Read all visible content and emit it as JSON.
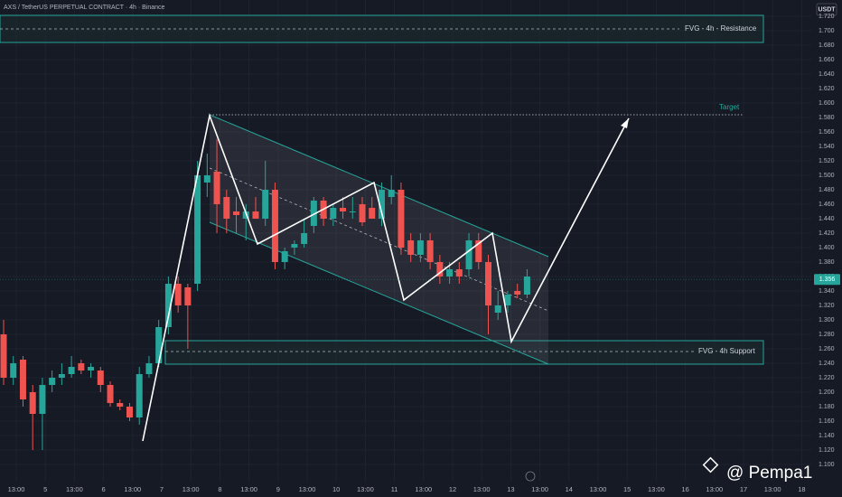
{
  "header": {
    "title": "AXS / TetherUS PERPETUAL CONTRACT · 4h · Binance",
    "currency": "USDT"
  },
  "chart_data": {
    "type": "candlestick",
    "up_color": "#26a69a",
    "down_color": "#ef5350",
    "open": [
      1.28,
      1.22,
      1.245,
      1.2,
      1.17,
      1.21,
      1.22,
      1.225,
      1.24,
      1.23,
      1.23,
      1.21,
      1.185,
      1.18,
      1.165,
      1.225,
      1.24,
      1.29,
      1.35,
      1.345,
      1.35,
      1.49,
      1.505,
      1.47,
      1.45,
      1.44,
      1.45,
      1.44,
      1.48,
      1.38,
      1.4,
      1.405,
      1.43,
      1.465,
      1.44,
      1.455,
      1.45,
      1.46,
      1.455,
      1.44,
      1.47,
      1.48,
      1.41,
      1.39,
      1.41,
      1.38,
      1.36,
      1.37,
      1.37,
      1.41,
      1.38,
      1.31,
      1.32,
      1.34,
      1.335
    ],
    "high": [
      1.3,
      1.25,
      1.25,
      1.21,
      1.22,
      1.23,
      1.24,
      1.25,
      1.245,
      1.24,
      1.235,
      1.215,
      1.19,
      1.185,
      1.235,
      1.25,
      1.3,
      1.36,
      1.36,
      1.35,
      1.52,
      1.53,
      1.55,
      1.48,
      1.47,
      1.46,
      1.47,
      1.52,
      1.49,
      1.4,
      1.41,
      1.44,
      1.47,
      1.47,
      1.46,
      1.47,
      1.47,
      1.47,
      1.47,
      1.49,
      1.5,
      1.49,
      1.42,
      1.42,
      1.42,
      1.39,
      1.38,
      1.38,
      1.42,
      1.42,
      1.39,
      1.34,
      1.34,
      1.35,
      1.37
    ],
    "low": [
      1.21,
      1.21,
      1.18,
      1.12,
      1.12,
      1.2,
      1.21,
      1.22,
      1.225,
      1.22,
      1.2,
      1.18,
      1.175,
      1.16,
      1.155,
      1.22,
      1.235,
      1.28,
      1.31,
      1.26,
      1.34,
      1.47,
      1.42,
      1.42,
      1.42,
      1.41,
      1.44,
      1.43,
      1.37,
      1.37,
      1.39,
      1.4,
      1.42,
      1.43,
      1.43,
      1.44,
      1.44,
      1.43,
      1.44,
      1.43,
      1.46,
      1.39,
      1.38,
      1.38,
      1.37,
      1.35,
      1.35,
      1.35,
      1.36,
      1.37,
      1.28,
      1.3,
      1.31,
      1.33,
      1.33
    ],
    "close": [
      1.22,
      1.24,
      1.19,
      1.17,
      1.21,
      1.22,
      1.225,
      1.235,
      1.23,
      1.235,
      1.21,
      1.185,
      1.18,
      1.165,
      1.225,
      1.24,
      1.29,
      1.35,
      1.32,
      1.32,
      1.5,
      1.5,
      1.46,
      1.44,
      1.445,
      1.45,
      1.44,
      1.48,
      1.38,
      1.395,
      1.405,
      1.42,
      1.465,
      1.44,
      1.455,
      1.45,
      1.45,
      1.435,
      1.44,
      1.48,
      1.48,
      1.4,
      1.39,
      1.41,
      1.38,
      1.36,
      1.37,
      1.36,
      1.41,
      1.38,
      1.32,
      1.32,
      1.335,
      1.335,
      1.36
    ],
    "ylim": [
      1.1,
      1.72
    ],
    "yticks": [
      {
        "value": 1.1,
        "label": "1.100"
      },
      {
        "value": 1.12,
        "label": "1.120"
      },
      {
        "value": 1.14,
        "label": "1.140"
      },
      {
        "value": 1.16,
        "label": "1.160"
      },
      {
        "value": 1.18,
        "label": "1.180"
      },
      {
        "value": 1.2,
        "label": "1.200"
      },
      {
        "value": 1.22,
        "label": "1.220"
      },
      {
        "value": 1.24,
        "label": "1.240"
      },
      {
        "value": 1.26,
        "label": "1.260"
      },
      {
        "value": 1.28,
        "label": "1.280"
      },
      {
        "value": 1.3,
        "label": "1.300"
      },
      {
        "value": 1.32,
        "label": "1.320"
      },
      {
        "value": 1.34,
        "label": "1.340"
      },
      {
        "value": 1.36,
        "label": "1.360"
      },
      {
        "value": 1.38,
        "label": "1.380"
      },
      {
        "value": 1.4,
        "label": "1.400"
      },
      {
        "value": 1.42,
        "label": "1.420"
      },
      {
        "value": 1.44,
        "label": "1.440"
      },
      {
        "value": 1.46,
        "label": "1.460"
      },
      {
        "value": 1.48,
        "label": "1.480"
      },
      {
        "value": 1.5,
        "label": "1.500"
      },
      {
        "value": 1.52,
        "label": "1.520"
      },
      {
        "value": 1.54,
        "label": "1.540"
      },
      {
        "value": 1.56,
        "label": "1.560"
      },
      {
        "value": 1.58,
        "label": "1.580"
      },
      {
        "value": 1.6,
        "label": "1.600"
      },
      {
        "value": 1.62,
        "label": "1.620"
      },
      {
        "value": 1.64,
        "label": "1.640"
      },
      {
        "value": 1.66,
        "label": "1.660"
      },
      {
        "value": 1.68,
        "label": "1.680"
      },
      {
        "value": 1.7,
        "label": "1.700"
      },
      {
        "value": 1.72,
        "label": "1.720"
      }
    ],
    "xticks": [
      "13:00",
      "5",
      "13:00",
      "6",
      "13:00",
      "7",
      "13:00",
      "8",
      "13:00",
      "9",
      "13:00",
      "10",
      "13:00",
      "11",
      "13:00",
      "12",
      "13:00",
      "13",
      "13:00",
      "14",
      "13:00",
      "15",
      "13:00",
      "16",
      "13:00",
      "17",
      "13:00",
      "18"
    ],
    "last_price": {
      "value": 1.356,
      "label": "1.356"
    },
    "annotations": {
      "resistance": "FVG - 4h - Resistance",
      "target": "Target",
      "support": "FVG - 4h Support"
    }
  },
  "watermark": "@ Pempa1"
}
